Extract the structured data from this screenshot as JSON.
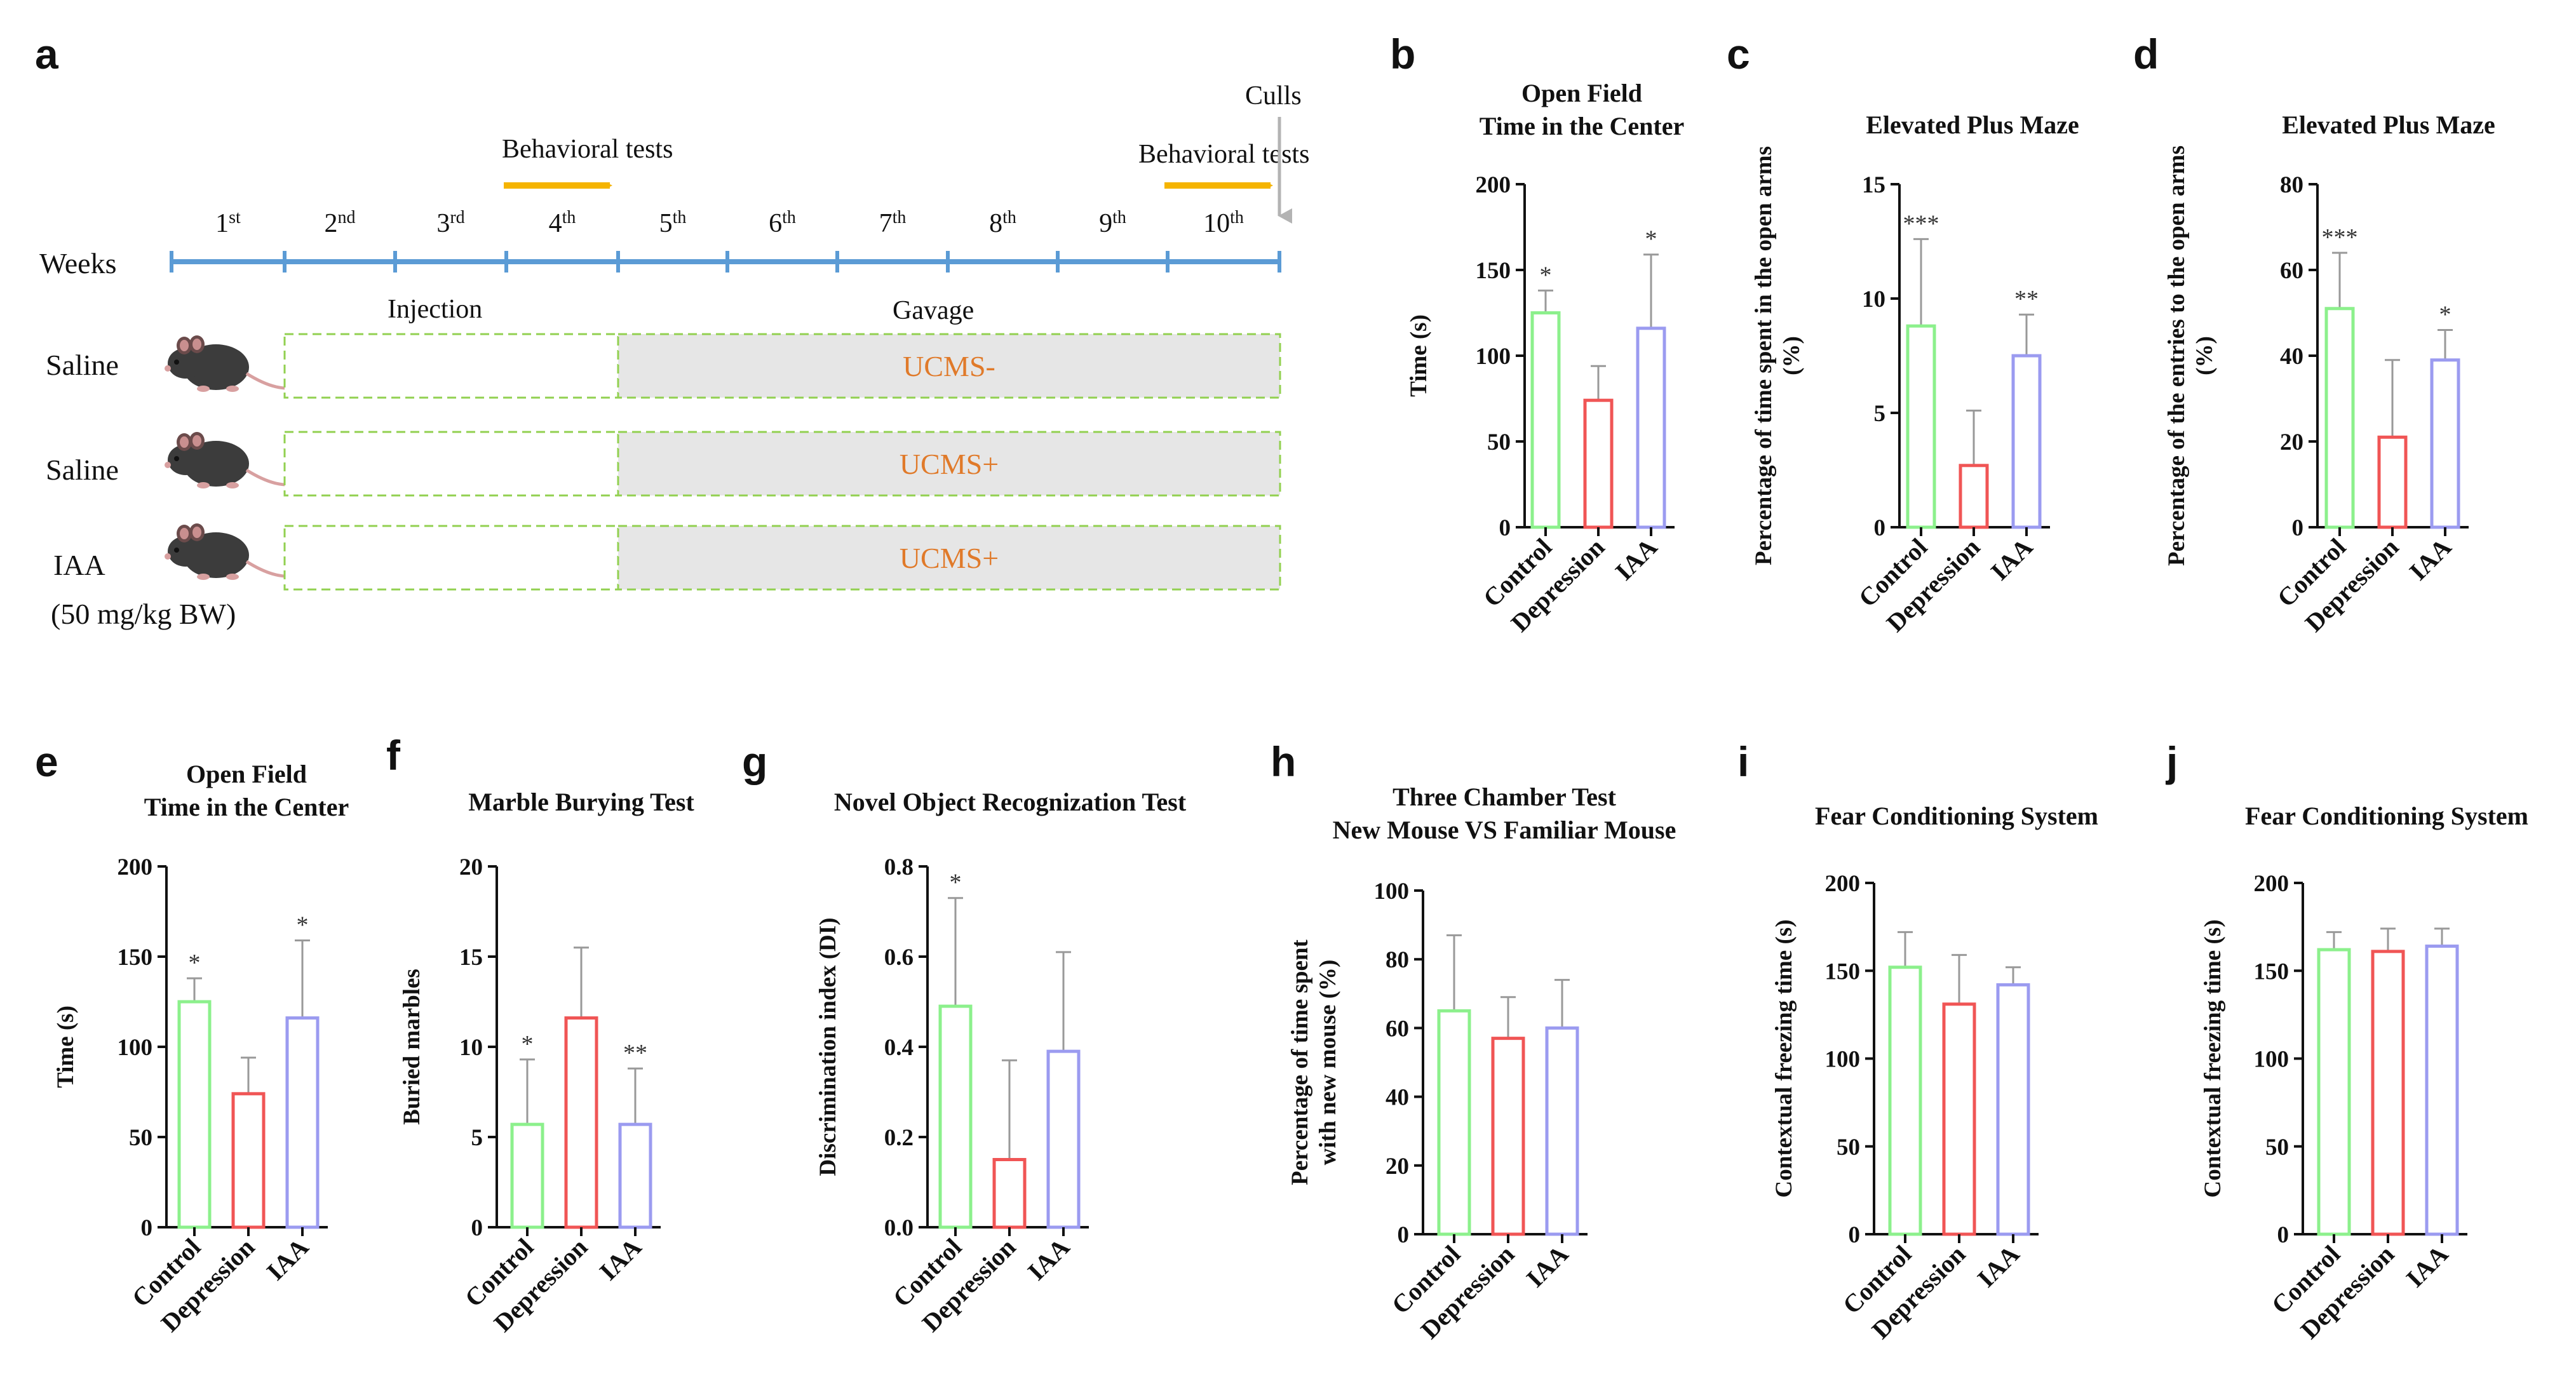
{
  "colors": {
    "control": "#8cf08c",
    "depression": "#f05555",
    "iaa": "#9b9bf0",
    "timeline": "#5b9bd5",
    "arrow": "#f5b400",
    "gavage_fill": "#e6e6e6",
    "injection_border": "#92d050",
    "ucms_text": "#e07a2a"
  },
  "timeline": {
    "panel_letter": "a",
    "weeks_label": "Weeks",
    "weeks": [
      {
        "num": "1",
        "sup": "st"
      },
      {
        "num": "2",
        "sup": "nd"
      },
      {
        "num": "3",
        "sup": "rd"
      },
      {
        "num": "4",
        "sup": "th"
      },
      {
        "num": "5",
        "sup": "th"
      },
      {
        "num": "6",
        "sup": "th"
      },
      {
        "num": "7",
        "sup": "th"
      },
      {
        "num": "8",
        "sup": "th"
      },
      {
        "num": "9",
        "sup": "th"
      },
      {
        "num": "10",
        "sup": "th"
      }
    ],
    "behavioral_tests_1": "Behavioral tests",
    "behavioral_tests_2": "Behavioral tests",
    "culls": "Culls",
    "injection": "Injection",
    "gavage": "Gavage",
    "groups": [
      {
        "label": "Saline",
        "sublabel": "",
        "ucms": "UCMS-"
      },
      {
        "label": "Saline",
        "sublabel": "",
        "ucms": "UCMS+"
      },
      {
        "label": "IAA",
        "sublabel": "(50 mg/kg BW)",
        "ucms": "UCMS+"
      }
    ]
  },
  "chart_data": [
    {
      "id": "b",
      "panel_letter": "b",
      "type": "bar",
      "title_lines": [
        "Open Field",
        "Time in the Center"
      ],
      "ylabel_lines": [
        "Time (s)"
      ],
      "categories": [
        "Control",
        "Depression",
        "IAA"
      ],
      "values": [
        125,
        74,
        116
      ],
      "errors": [
        13,
        20,
        43
      ],
      "significance": [
        "*",
        "",
        "*"
      ],
      "ylim": [
        0,
        200
      ],
      "yticks": [
        "0",
        "50",
        "100",
        "150",
        "200"
      ]
    },
    {
      "id": "c",
      "panel_letter": "c",
      "type": "bar",
      "title_lines": [
        "Elevated Plus Maze"
      ],
      "ylabel_lines": [
        "Percentage of time spent in the open arms",
        "(%)"
      ],
      "categories": [
        "Control",
        "Depression",
        "IAA"
      ],
      "values": [
        8.8,
        2.7,
        7.5
      ],
      "errors": [
        3.8,
        2.4,
        1.8
      ],
      "significance": [
        "***",
        "",
        "**"
      ],
      "ylim": [
        0,
        15
      ],
      "yticks": [
        "0",
        "5",
        "10",
        "15"
      ]
    },
    {
      "id": "d",
      "panel_letter": "d",
      "type": "bar",
      "title_lines": [
        "Elevated Plus Maze"
      ],
      "ylabel_lines": [
        "Percentage of the entries to the open arms",
        "(%)"
      ],
      "categories": [
        "Control",
        "Depression",
        "IAA"
      ],
      "values": [
        51,
        21,
        39
      ],
      "errors": [
        13,
        18,
        7
      ],
      "significance": [
        "***",
        "",
        "*"
      ],
      "ylim": [
        0,
        80
      ],
      "yticks": [
        "0",
        "20",
        "40",
        "60",
        "80"
      ]
    },
    {
      "id": "e",
      "panel_letter": "e",
      "type": "bar",
      "title_lines": [
        "Open Field",
        "Time in the Center"
      ],
      "ylabel_lines": [
        "Time (s)"
      ],
      "categories": [
        "Control",
        "Depression",
        "IAA"
      ],
      "values": [
        125,
        74,
        116
      ],
      "errors": [
        13,
        20,
        43
      ],
      "significance": [
        "*",
        "",
        "*"
      ],
      "ylim": [
        0,
        200
      ],
      "yticks": [
        "0",
        "50",
        "100",
        "150",
        "200"
      ]
    },
    {
      "id": "f",
      "panel_letter": "f",
      "type": "bar",
      "title_lines": [
        "Marble Burying Test"
      ],
      "ylabel_lines": [
        "Buried marbles"
      ],
      "categories": [
        "Control",
        "Depression",
        "IAA"
      ],
      "values": [
        5.7,
        11.6,
        5.7
      ],
      "errors": [
        3.6,
        3.9,
        3.1
      ],
      "significance": [
        "*",
        "",
        "**"
      ],
      "ylim": [
        0,
        20
      ],
      "yticks": [
        "0",
        "5",
        "10",
        "15",
        "20"
      ]
    },
    {
      "id": "g",
      "panel_letter": "g",
      "type": "bar",
      "title_lines": [
        "Novel Object Recognization Test"
      ],
      "ylabel_lines": [
        "Discrimination index (DI)"
      ],
      "categories": [
        "Control",
        "Depression",
        "IAA"
      ],
      "values": [
        0.49,
        0.15,
        0.39
      ],
      "errors": [
        0.24,
        0.22,
        0.22
      ],
      "significance": [
        "*",
        "",
        ""
      ],
      "ylim": [
        0,
        0.8
      ],
      "yticks": [
        "0.0",
        "0.2",
        "0.4",
        "0.6",
        "0.8"
      ]
    },
    {
      "id": "h",
      "panel_letter": "h",
      "type": "bar",
      "title_lines": [
        "Three Chamber Test",
        "New Mouse VS Familiar Mouse"
      ],
      "ylabel_lines": [
        "Percentage of time spent",
        "with new mouse (%)"
      ],
      "categories": [
        "Control",
        "Depression",
        "IAA"
      ],
      "values": [
        65,
        57,
        60
      ],
      "errors": [
        22,
        12,
        14
      ],
      "significance": [
        "",
        "",
        ""
      ],
      "ylim": [
        0,
        100
      ],
      "yticks": [
        "0",
        "20",
        "40",
        "60",
        "80",
        "100"
      ]
    },
    {
      "id": "i",
      "panel_letter": "i",
      "type": "bar",
      "title_lines": [
        "Fear Conditioning System"
      ],
      "ylabel_lines": [
        "Contextual freezing time (s)"
      ],
      "categories": [
        "Control",
        "Depression",
        "IAA"
      ],
      "values": [
        152,
        131,
        142
      ],
      "errors": [
        20,
        28,
        10
      ],
      "significance": [
        "",
        "",
        ""
      ],
      "ylim": [
        0,
        200
      ],
      "yticks": [
        "0",
        "50",
        "100",
        "150",
        "200"
      ]
    },
    {
      "id": "j",
      "panel_letter": "j",
      "type": "bar",
      "title_lines": [
        "Fear Conditioning System"
      ],
      "ylabel_lines": [
        "Contextual freezing time (s)"
      ],
      "categories": [
        "Control",
        "Depression",
        "IAA"
      ],
      "values": [
        162,
        161,
        164
      ],
      "errors": [
        10,
        13,
        10
      ],
      "significance": [
        "",
        "",
        ""
      ],
      "ylim": [
        0,
        200
      ],
      "yticks": [
        "0",
        "50",
        "100",
        "150",
        "200"
      ]
    }
  ]
}
